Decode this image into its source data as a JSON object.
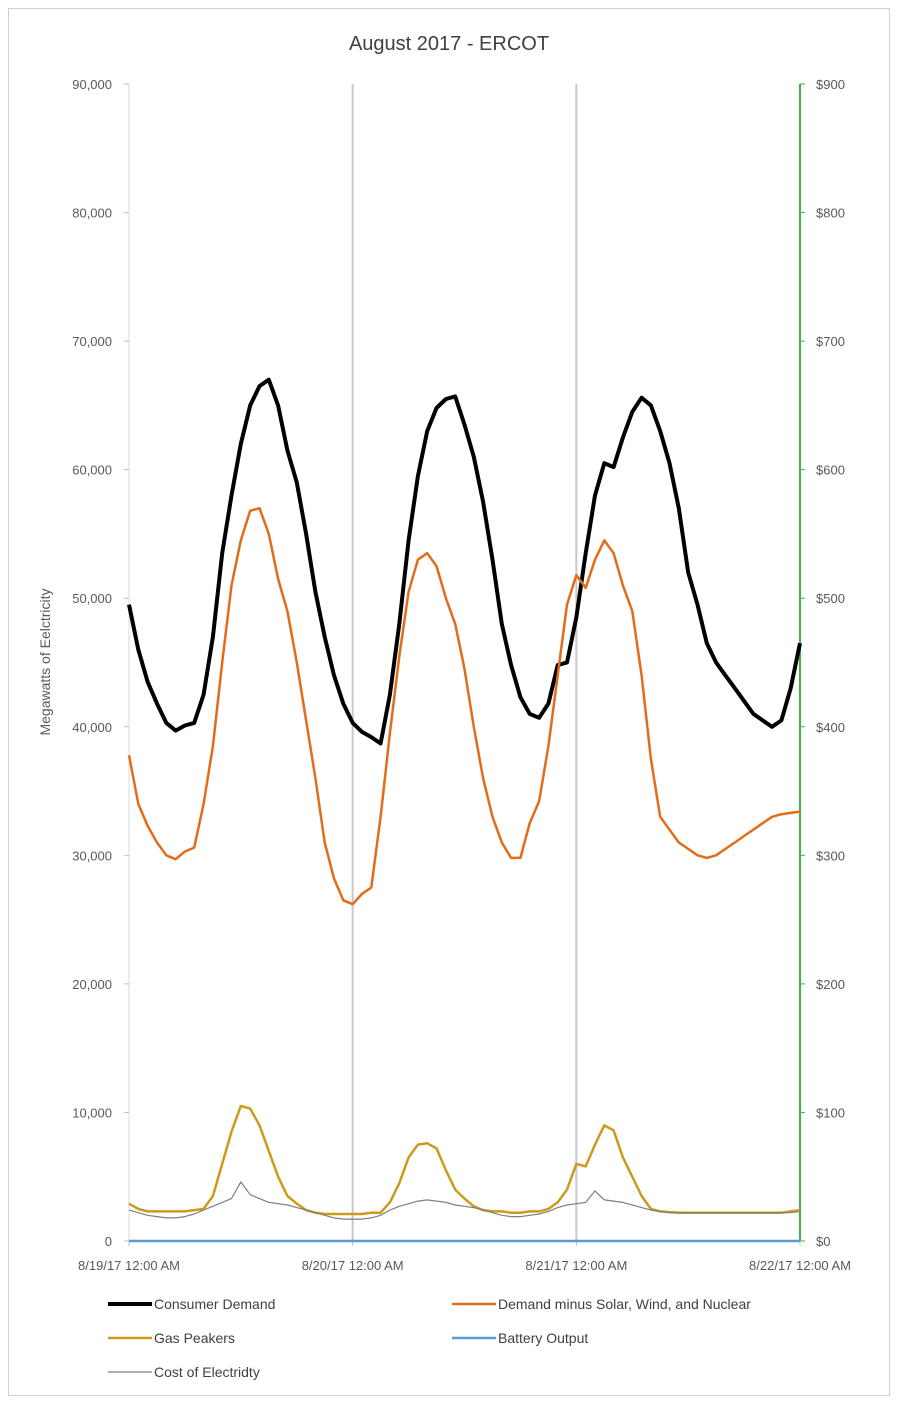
{
  "chart_data": {
    "type": "line",
    "title": "August 2017 - ERCOT",
    "ylabel": "Megawatts of Eelctricity",
    "y2label": "",
    "ylim": [
      0,
      90000
    ],
    "y2lim": [
      0,
      900
    ],
    "y_ticks": [
      "0",
      "10,000",
      "20,000",
      "30,000",
      "40,000",
      "50,000",
      "60,000",
      "70,000",
      "80,000",
      "90,000"
    ],
    "y2_ticks": [
      "$0",
      "$100",
      "$200",
      "$300",
      "$400",
      "$500",
      "$600",
      "$700",
      "$800",
      "$900"
    ],
    "x_range_hours": [
      0,
      72
    ],
    "x_ticks": [
      "8/19/17 12:00 AM",
      "8/20/17 12:00 AM",
      "8/21/17 12:00 AM",
      "8/22/17 12:00 AM"
    ],
    "grid": "vertical",
    "legend_position": "bottom",
    "series": [
      {
        "name": "Consumer Demand",
        "color": "#000000",
        "axis": "left",
        "x": [
          0,
          1,
          2,
          3,
          4,
          5,
          6,
          7,
          8,
          9,
          10,
          11,
          12,
          13,
          14,
          15,
          16,
          17,
          18,
          19,
          20,
          21,
          22,
          23,
          24,
          25,
          26,
          27,
          28,
          29,
          30,
          31,
          32,
          33,
          34,
          35,
          36,
          37,
          38,
          39,
          40,
          41,
          42,
          43,
          44,
          45,
          46,
          47,
          48,
          49,
          50,
          51,
          52,
          53,
          54,
          55,
          56,
          57,
          58,
          59,
          60,
          61,
          62,
          63,
          64,
          65,
          66,
          67,
          68,
          69,
          70,
          71,
          72
        ],
        "values": [
          49500,
          46000,
          43500,
          41800,
          40300,
          39700,
          40100,
          40300,
          42500,
          47000,
          53500,
          58000,
          62000,
          65000,
          66500,
          67000,
          65000,
          61500,
          59000,
          55000,
          50500,
          47000,
          44000,
          41800,
          40300,
          39600,
          39200,
          38700,
          42500,
          48000,
          54500,
          59500,
          63000,
          64800,
          65500,
          65700,
          63500,
          61000,
          57500,
          53000,
          48000,
          44800,
          42300,
          41000,
          40700,
          41800,
          44800,
          45000,
          48500,
          53500,
          58000,
          60500,
          60200,
          62500,
          64500,
          65600,
          65000,
          63000,
          60500,
          57000,
          52000,
          49500,
          46500,
          45000,
          44000,
          43000,
          42000,
          41000,
          40500,
          40000,
          40500,
          43000,
          46500
        ]
      },
      {
        "name": "Demand minus Solar, Wind, and Nuclear",
        "color": "#e36c1a",
        "axis": "left",
        "x": [
          0,
          1,
          2,
          3,
          4,
          5,
          6,
          7,
          8,
          9,
          10,
          11,
          12,
          13,
          14,
          15,
          16,
          17,
          18,
          19,
          20,
          21,
          22,
          23,
          24,
          25,
          26,
          27,
          28,
          29,
          30,
          31,
          32,
          33,
          34,
          35,
          36,
          37,
          38,
          39,
          40,
          41,
          42,
          43,
          44,
          45,
          46,
          47,
          48,
          49,
          50,
          51,
          52,
          53,
          54,
          55,
          56,
          57,
          58,
          59,
          60,
          61,
          62,
          63,
          64,
          65,
          66,
          67,
          68,
          69,
          70,
          71,
          72
        ],
        "values": [
          37800,
          34000,
          32300,
          31000,
          30000,
          29700,
          30300,
          30600,
          34000,
          38500,
          45000,
          51000,
          54500,
          56800,
          57000,
          55000,
          51500,
          49000,
          45000,
          40500,
          36000,
          31000,
          28200,
          26500,
          26200,
          27000,
          27500,
          33000,
          39500,
          45500,
          50500,
          53000,
          53500,
          52500,
          50000,
          48000,
          44500,
          40000,
          36000,
          33000,
          31000,
          29800,
          29800,
          32500,
          34200,
          38500,
          44000,
          49500,
          51800,
          50800,
          53000,
          54500,
          53500,
          51000,
          49000,
          44000,
          37500,
          33000,
          32000,
          31000,
          30500,
          30000,
          29800,
          30000,
          30500,
          31000,
          31500,
          32000,
          32500,
          33000,
          33200,
          33300,
          33400
        ]
      },
      {
        "name": "Gas Peakers",
        "color": "#cc9b1b",
        "axis": "left",
        "x": [
          0,
          1,
          2,
          3,
          4,
          5,
          6,
          7,
          8,
          9,
          10,
          11,
          12,
          13,
          14,
          15,
          16,
          17,
          18,
          19,
          20,
          21,
          22,
          23,
          24,
          25,
          26,
          27,
          28,
          29,
          30,
          31,
          32,
          33,
          34,
          35,
          36,
          37,
          38,
          39,
          40,
          41,
          42,
          43,
          44,
          45,
          46,
          47,
          48,
          49,
          50,
          51,
          52,
          53,
          54,
          55,
          56,
          57,
          58,
          59,
          60,
          61,
          62,
          63,
          64,
          65,
          66,
          67,
          68,
          69,
          70,
          71,
          72
        ],
        "values": [
          2900,
          2500,
          2300,
          2300,
          2300,
          2300,
          2300,
          2400,
          2500,
          3500,
          6000,
          8500,
          10500,
          10300,
          9000,
          7000,
          5000,
          3500,
          2900,
          2400,
          2200,
          2100,
          2100,
          2100,
          2100,
          2100,
          2200,
          2200,
          3000,
          4500,
          6500,
          7500,
          7600,
          7200,
          5500,
          4000,
          3300,
          2700,
          2400,
          2300,
          2300,
          2200,
          2200,
          2300,
          2300,
          2500,
          3000,
          4000,
          6000,
          5800,
          7500,
          9000,
          8600,
          6500,
          5000,
          3500,
          2500,
          2300,
          2250,
          2200,
          2200,
          2200,
          2200,
          2200,
          2200,
          2200,
          2200,
          2200,
          2200,
          2200,
          2200,
          2300,
          2400
        ]
      },
      {
        "name": "Battery Output",
        "color": "#5b9bd5",
        "axis": "left",
        "x": [
          0,
          72
        ],
        "values": [
          0,
          0
        ]
      },
      {
        "name": "Cost of Electridty",
        "color": "#7f7f7f",
        "axis": "right",
        "x": [
          0,
          1,
          2,
          3,
          4,
          5,
          6,
          7,
          8,
          9,
          10,
          11,
          12,
          13,
          14,
          15,
          16,
          17,
          18,
          19,
          20,
          21,
          22,
          23,
          24,
          25,
          26,
          27,
          28,
          29,
          30,
          31,
          32,
          33,
          34,
          35,
          36,
          37,
          38,
          39,
          40,
          41,
          42,
          43,
          44,
          45,
          46,
          47,
          48,
          49,
          50,
          51,
          52,
          53,
          54,
          55,
          56,
          57,
          58,
          59,
          60,
          61,
          62,
          63,
          64,
          65,
          66,
          67,
          68,
          69,
          70,
          71,
          72
        ],
        "values": [
          24,
          22,
          20,
          19,
          18,
          18,
          19,
          21,
          24,
          27,
          30,
          33,
          46,
          36,
          33,
          30,
          29,
          28,
          26,
          24,
          22,
          20,
          18,
          17,
          17,
          17,
          18,
          20,
          24,
          27,
          29,
          31,
          32,
          31,
          30,
          28,
          27,
          26,
          24,
          22,
          20,
          19,
          19,
          20,
          21,
          23,
          26,
          28,
          29,
          30,
          39,
          32,
          31,
          30,
          28,
          26,
          24,
          23,
          22,
          22,
          22,
          22,
          22,
          22,
          22,
          22,
          22,
          22,
          22,
          22,
          22,
          22,
          23
        ]
      }
    ]
  }
}
